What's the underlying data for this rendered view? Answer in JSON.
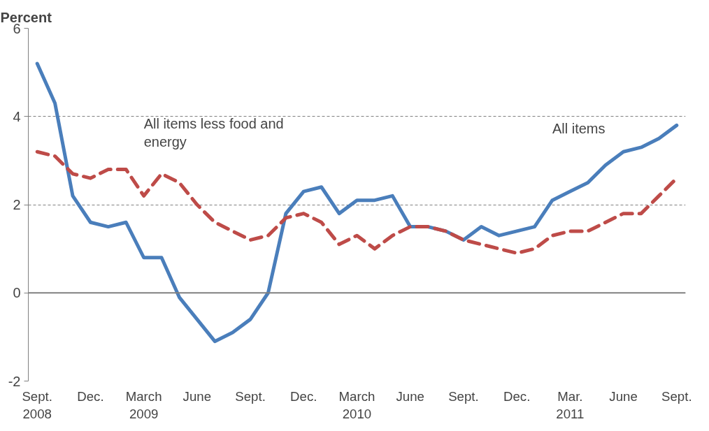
{
  "chart_data": {
    "type": "line",
    "ylabel": "Percent",
    "categories": [
      "Sept.\n2008",
      null,
      null,
      "Dec.",
      null,
      null,
      "March\n2009",
      null,
      null,
      "June",
      null,
      null,
      "Sept.",
      null,
      null,
      "Dec.",
      null,
      null,
      "March\n2010",
      null,
      null,
      "June",
      null,
      null,
      "Sept.",
      null,
      null,
      "Dec.",
      null,
      null,
      "Mar.\n2011",
      null,
      null,
      "June",
      null,
      null,
      "Sept."
    ],
    "series": [
      {
        "name": "All items",
        "color": "#4a7ebb",
        "line_style": "solid",
        "values": [
          5.2,
          4.3,
          2.2,
          1.6,
          1.5,
          1.6,
          0.8,
          0.8,
          -0.1,
          -0.6,
          -1.1,
          -0.9,
          -0.6,
          0.0,
          1.8,
          2.3,
          2.4,
          1.8,
          2.1,
          2.1,
          2.2,
          1.5,
          1.5,
          1.4,
          1.2,
          1.5,
          1.3,
          1.4,
          1.5,
          2.1,
          2.3,
          2.5,
          2.9,
          3.2,
          3.3,
          3.5,
          3.8
        ]
      },
      {
        "name": "All items less food and\nenergy",
        "color": "#be4b48",
        "line_style": "dashed",
        "values": [
          3.2,
          3.1,
          2.7,
          2.6,
          2.8,
          2.8,
          2.2,
          2.7,
          2.5,
          2.0,
          1.6,
          1.4,
          1.2,
          1.3,
          1.7,
          1.8,
          1.6,
          1.1,
          1.3,
          1.0,
          1.3,
          1.5,
          1.5,
          1.4,
          1.2,
          1.1,
          1.0,
          0.9,
          1.0,
          1.3,
          1.4,
          1.4,
          1.6,
          1.8,
          1.8,
          2.2,
          2.6
        ]
      }
    ],
    "ylim": [
      -2,
      6
    ],
    "yticks": [
      -2,
      0,
      2,
      4,
      6
    ],
    "grid": "y",
    "legend": false
  }
}
